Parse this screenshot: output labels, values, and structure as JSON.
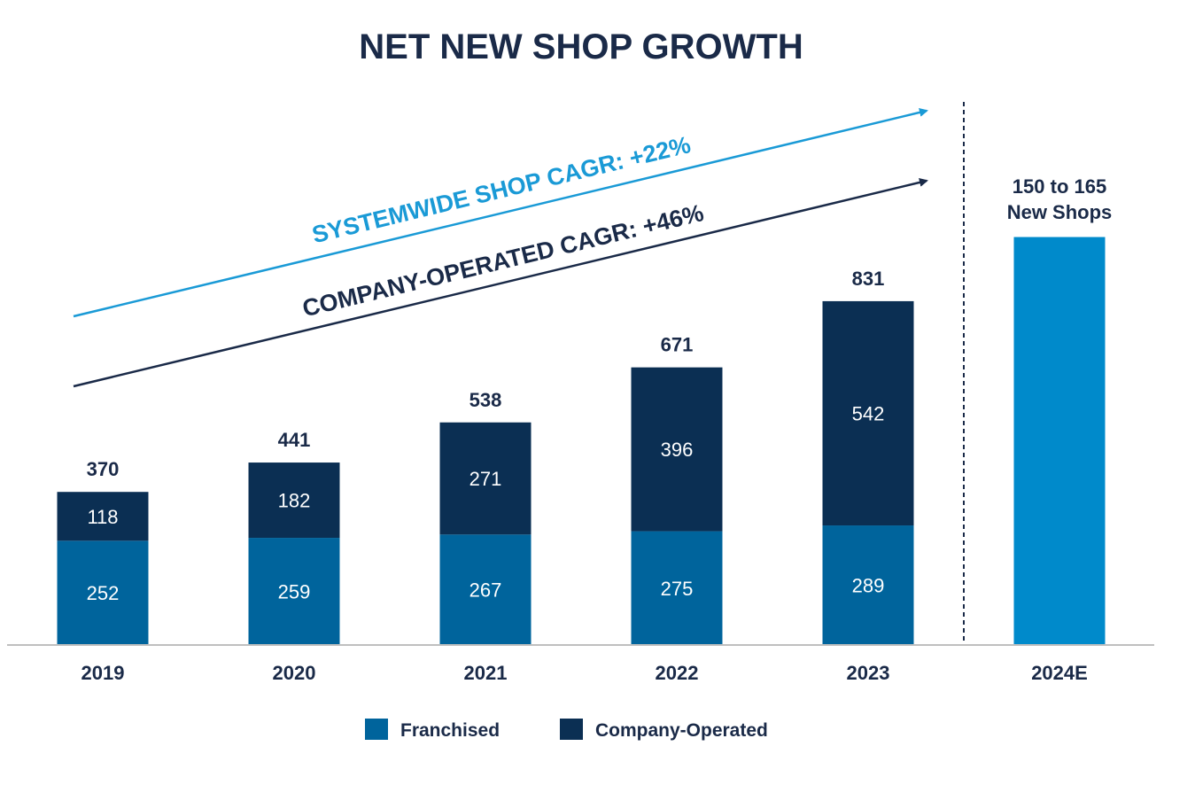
{
  "chart_data": {
    "type": "bar",
    "stacked": true,
    "title": "NET NEW SHOP GROWTH",
    "xlabel": "",
    "ylabel": "",
    "grid": false,
    "legend_position": "bottom",
    "categories": [
      "2019",
      "2020",
      "2021",
      "2022",
      "2023"
    ],
    "series": [
      {
        "name": "Franchised",
        "color": "#00649c",
        "values": [
          252,
          259,
          267,
          275,
          289
        ]
      },
      {
        "name": "Company-Operated",
        "color": "#0b2f53",
        "values": [
          118,
          182,
          271,
          396,
          542
        ]
      }
    ],
    "totals": [
      370,
      441,
      538,
      671,
      831
    ],
    "forecast": {
      "category": "2024E",
      "label_line1": "150 to 165",
      "label_line2": "New Shops",
      "approx_total": 986,
      "color": "#008acb"
    },
    "annotations": [
      {
        "text": "SYSTEMWIDE SHOP CAGR: +22%",
        "color": "#1a9ad6"
      },
      {
        "text": "COMPANY-OPERATED CAGR: +46%",
        "color": "#1a2a48"
      }
    ]
  }
}
